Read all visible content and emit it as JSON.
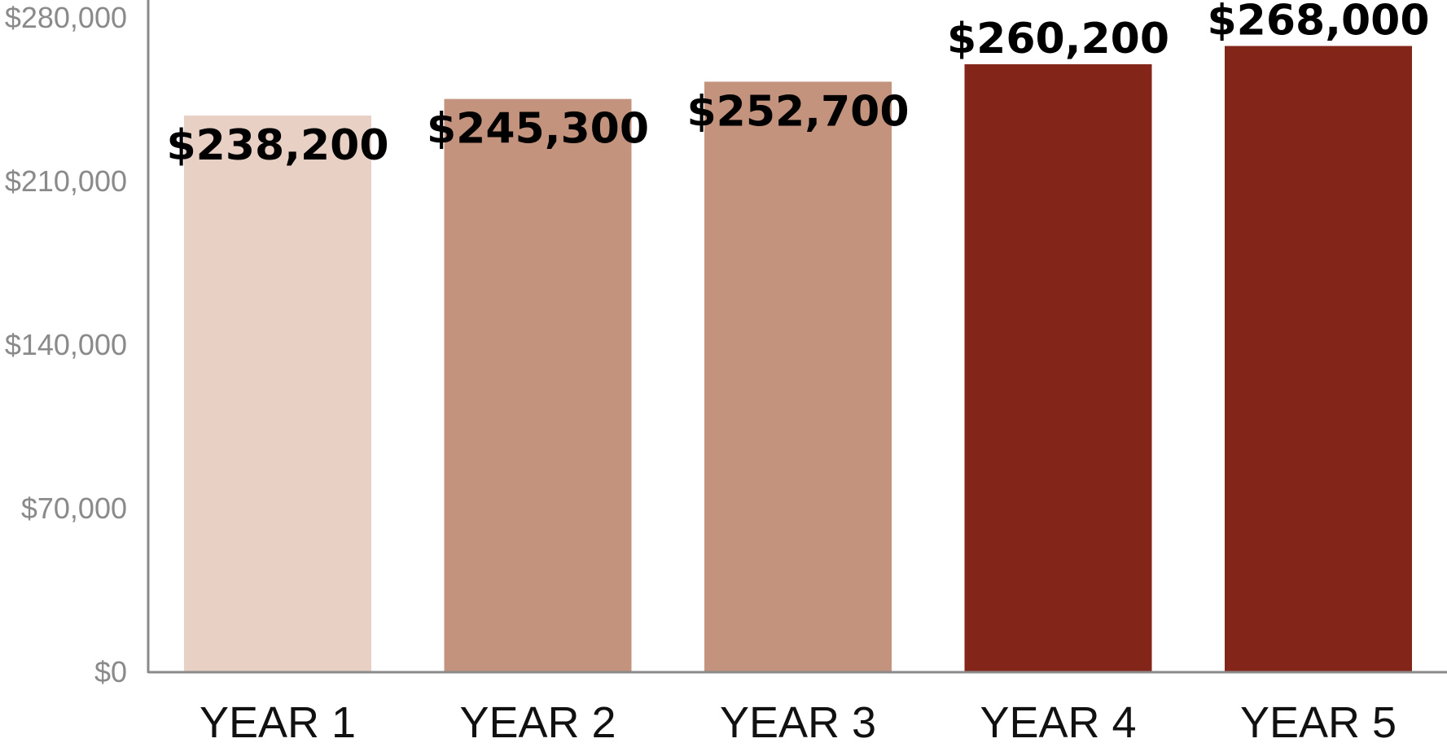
{
  "chart_data": {
    "type": "bar",
    "categories": [
      "YEAR 1",
      "YEAR 2",
      "YEAR 3",
      "YEAR 4",
      "YEAR 5"
    ],
    "values": [
      238200,
      245300,
      252700,
      260200,
      268000
    ],
    "data_labels": [
      "$238,200",
      "$245,300",
      "$252,700",
      "$260,200",
      "$268,000"
    ],
    "bar_colors": [
      "#e8d1c4",
      "#c3937e",
      "#c3937e",
      "#84251a",
      "#84251a"
    ],
    "y_ticks": [
      0,
      70000,
      140000,
      210000,
      280000
    ],
    "y_tick_labels": [
      "$0",
      "$70,000",
      "$140,000",
      "$210,000",
      "$280,000"
    ],
    "ylim": [
      0,
      280000
    ],
    "title": "",
    "xlabel": "",
    "ylabel": "",
    "grid": false,
    "legend": "none",
    "axis_color": "#8a8a8a"
  }
}
